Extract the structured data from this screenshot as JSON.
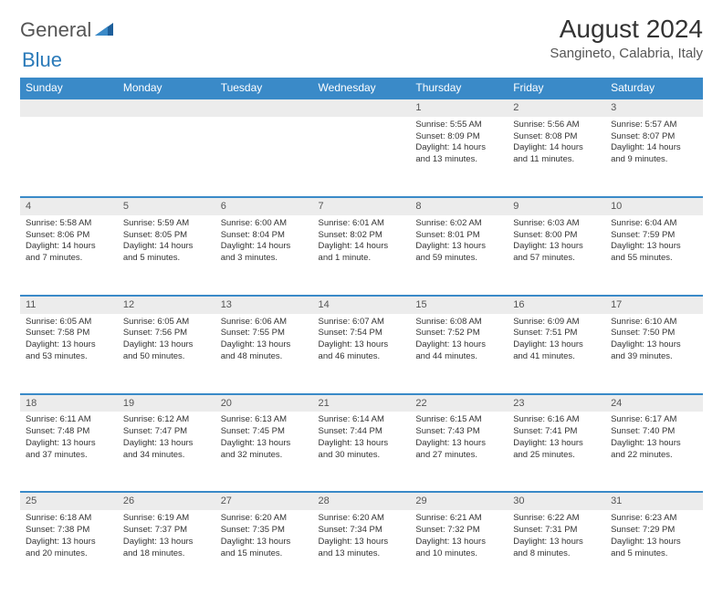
{
  "logo": {
    "general": "General",
    "blue": "Blue"
  },
  "title": "August 2024",
  "location": "Sangineto, Calabria, Italy",
  "colors": {
    "header_bg": "#3a8ac8",
    "header_text": "#ffffff",
    "daynum_bg": "#ececec",
    "text": "#333333",
    "logo_gray": "#555555",
    "logo_blue": "#2a7ab9"
  },
  "weekdays": [
    "Sunday",
    "Monday",
    "Tuesday",
    "Wednesday",
    "Thursday",
    "Friday",
    "Saturday"
  ],
  "weeks": [
    {
      "nums": [
        "",
        "",
        "",
        "",
        "1",
        "2",
        "3"
      ],
      "cells": [
        null,
        null,
        null,
        null,
        {
          "sunrise": "Sunrise: 5:55 AM",
          "sunset": "Sunset: 8:09 PM",
          "day1": "Daylight: 14 hours",
          "day2": "and 13 minutes."
        },
        {
          "sunrise": "Sunrise: 5:56 AM",
          "sunset": "Sunset: 8:08 PM",
          "day1": "Daylight: 14 hours",
          "day2": "and 11 minutes."
        },
        {
          "sunrise": "Sunrise: 5:57 AM",
          "sunset": "Sunset: 8:07 PM",
          "day1": "Daylight: 14 hours",
          "day2": "and 9 minutes."
        }
      ]
    },
    {
      "nums": [
        "4",
        "5",
        "6",
        "7",
        "8",
        "9",
        "10"
      ],
      "cells": [
        {
          "sunrise": "Sunrise: 5:58 AM",
          "sunset": "Sunset: 8:06 PM",
          "day1": "Daylight: 14 hours",
          "day2": "and 7 minutes."
        },
        {
          "sunrise": "Sunrise: 5:59 AM",
          "sunset": "Sunset: 8:05 PM",
          "day1": "Daylight: 14 hours",
          "day2": "and 5 minutes."
        },
        {
          "sunrise": "Sunrise: 6:00 AM",
          "sunset": "Sunset: 8:04 PM",
          "day1": "Daylight: 14 hours",
          "day2": "and 3 minutes."
        },
        {
          "sunrise": "Sunrise: 6:01 AM",
          "sunset": "Sunset: 8:02 PM",
          "day1": "Daylight: 14 hours",
          "day2": "and 1 minute."
        },
        {
          "sunrise": "Sunrise: 6:02 AM",
          "sunset": "Sunset: 8:01 PM",
          "day1": "Daylight: 13 hours",
          "day2": "and 59 minutes."
        },
        {
          "sunrise": "Sunrise: 6:03 AM",
          "sunset": "Sunset: 8:00 PM",
          "day1": "Daylight: 13 hours",
          "day2": "and 57 minutes."
        },
        {
          "sunrise": "Sunrise: 6:04 AM",
          "sunset": "Sunset: 7:59 PM",
          "day1": "Daylight: 13 hours",
          "day2": "and 55 minutes."
        }
      ]
    },
    {
      "nums": [
        "11",
        "12",
        "13",
        "14",
        "15",
        "16",
        "17"
      ],
      "cells": [
        {
          "sunrise": "Sunrise: 6:05 AM",
          "sunset": "Sunset: 7:58 PM",
          "day1": "Daylight: 13 hours",
          "day2": "and 53 minutes."
        },
        {
          "sunrise": "Sunrise: 6:05 AM",
          "sunset": "Sunset: 7:56 PM",
          "day1": "Daylight: 13 hours",
          "day2": "and 50 minutes."
        },
        {
          "sunrise": "Sunrise: 6:06 AM",
          "sunset": "Sunset: 7:55 PM",
          "day1": "Daylight: 13 hours",
          "day2": "and 48 minutes."
        },
        {
          "sunrise": "Sunrise: 6:07 AM",
          "sunset": "Sunset: 7:54 PM",
          "day1": "Daylight: 13 hours",
          "day2": "and 46 minutes."
        },
        {
          "sunrise": "Sunrise: 6:08 AM",
          "sunset": "Sunset: 7:52 PM",
          "day1": "Daylight: 13 hours",
          "day2": "and 44 minutes."
        },
        {
          "sunrise": "Sunrise: 6:09 AM",
          "sunset": "Sunset: 7:51 PM",
          "day1": "Daylight: 13 hours",
          "day2": "and 41 minutes."
        },
        {
          "sunrise": "Sunrise: 6:10 AM",
          "sunset": "Sunset: 7:50 PM",
          "day1": "Daylight: 13 hours",
          "day2": "and 39 minutes."
        }
      ]
    },
    {
      "nums": [
        "18",
        "19",
        "20",
        "21",
        "22",
        "23",
        "24"
      ],
      "cells": [
        {
          "sunrise": "Sunrise: 6:11 AM",
          "sunset": "Sunset: 7:48 PM",
          "day1": "Daylight: 13 hours",
          "day2": "and 37 minutes."
        },
        {
          "sunrise": "Sunrise: 6:12 AM",
          "sunset": "Sunset: 7:47 PM",
          "day1": "Daylight: 13 hours",
          "day2": "and 34 minutes."
        },
        {
          "sunrise": "Sunrise: 6:13 AM",
          "sunset": "Sunset: 7:45 PM",
          "day1": "Daylight: 13 hours",
          "day2": "and 32 minutes."
        },
        {
          "sunrise": "Sunrise: 6:14 AM",
          "sunset": "Sunset: 7:44 PM",
          "day1": "Daylight: 13 hours",
          "day2": "and 30 minutes."
        },
        {
          "sunrise": "Sunrise: 6:15 AM",
          "sunset": "Sunset: 7:43 PM",
          "day1": "Daylight: 13 hours",
          "day2": "and 27 minutes."
        },
        {
          "sunrise": "Sunrise: 6:16 AM",
          "sunset": "Sunset: 7:41 PM",
          "day1": "Daylight: 13 hours",
          "day2": "and 25 minutes."
        },
        {
          "sunrise": "Sunrise: 6:17 AM",
          "sunset": "Sunset: 7:40 PM",
          "day1": "Daylight: 13 hours",
          "day2": "and 22 minutes."
        }
      ]
    },
    {
      "nums": [
        "25",
        "26",
        "27",
        "28",
        "29",
        "30",
        "31"
      ],
      "cells": [
        {
          "sunrise": "Sunrise: 6:18 AM",
          "sunset": "Sunset: 7:38 PM",
          "day1": "Daylight: 13 hours",
          "day2": "and 20 minutes."
        },
        {
          "sunrise": "Sunrise: 6:19 AM",
          "sunset": "Sunset: 7:37 PM",
          "day1": "Daylight: 13 hours",
          "day2": "and 18 minutes."
        },
        {
          "sunrise": "Sunrise: 6:20 AM",
          "sunset": "Sunset: 7:35 PM",
          "day1": "Daylight: 13 hours",
          "day2": "and 15 minutes."
        },
        {
          "sunrise": "Sunrise: 6:20 AM",
          "sunset": "Sunset: 7:34 PM",
          "day1": "Daylight: 13 hours",
          "day2": "and 13 minutes."
        },
        {
          "sunrise": "Sunrise: 6:21 AM",
          "sunset": "Sunset: 7:32 PM",
          "day1": "Daylight: 13 hours",
          "day2": "and 10 minutes."
        },
        {
          "sunrise": "Sunrise: 6:22 AM",
          "sunset": "Sunset: 7:31 PM",
          "day1": "Daylight: 13 hours",
          "day2": "and 8 minutes."
        },
        {
          "sunrise": "Sunrise: 6:23 AM",
          "sunset": "Sunset: 7:29 PM",
          "day1": "Daylight: 13 hours",
          "day2": "and 5 minutes."
        }
      ]
    }
  ]
}
